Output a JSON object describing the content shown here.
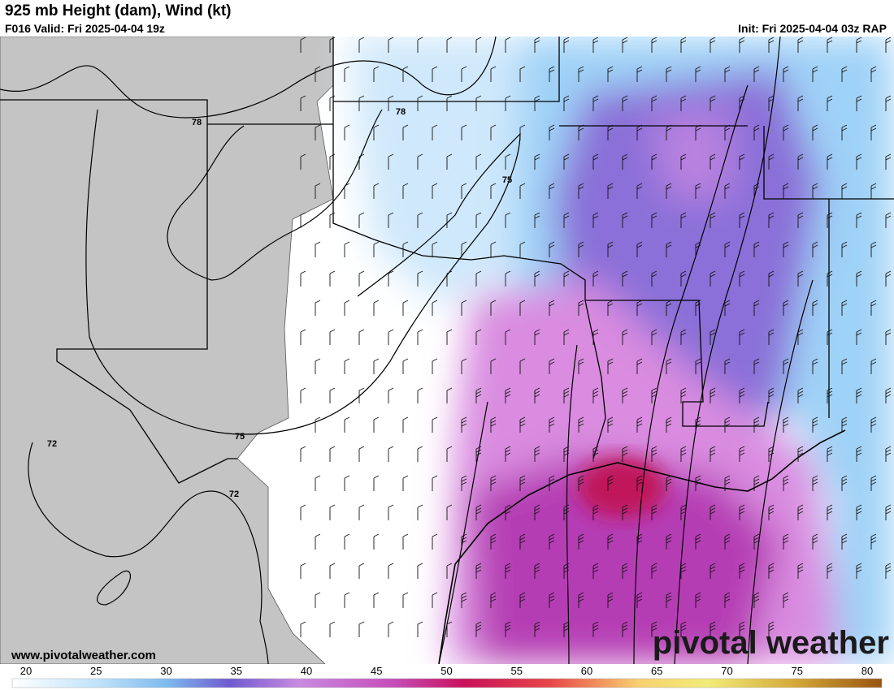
{
  "header": {
    "title": "925 mb Height (dam), Wind (kt)",
    "valid": "F016 Valid: Fri 2025-04-04 19z",
    "init": "Init: Fri 2025-04-04 03z RAP"
  },
  "contour_labels": [
    "78",
    "78",
    "75",
    "75",
    "72",
    "72"
  ],
  "watermark": {
    "url": "www.pivotalweather.com",
    "logo": "pivotal weather"
  },
  "colorbar": {
    "ticks": [
      20,
      25,
      30,
      35,
      40,
      45,
      50,
      55,
      60,
      65,
      70,
      75,
      80
    ]
  }
}
